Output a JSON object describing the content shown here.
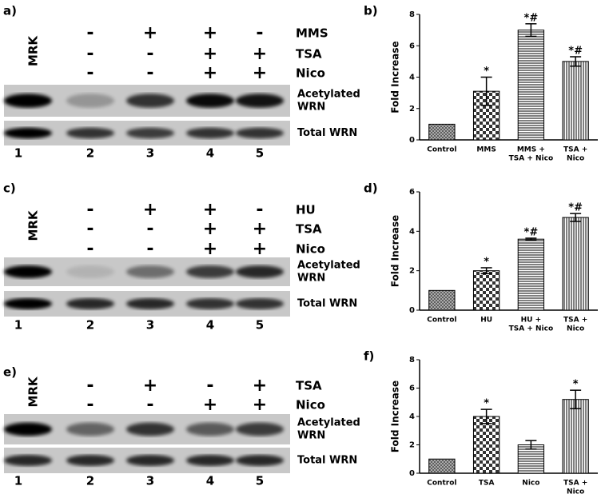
{
  "panels": [
    {
      "label": "a)",
      "marker": "MRK",
      "conditions": [
        {
          "name": "MMS",
          "signs": [
            "-",
            "+",
            "+",
            "-"
          ]
        },
        {
          "name": "TSA",
          "signs": [
            "-",
            "-",
            "+",
            "+"
          ]
        },
        {
          "name": "Nico",
          "signs": [
            "-",
            "-",
            "+",
            "+"
          ]
        }
      ],
      "blots": [
        [
          "Acetylated",
          "WRN"
        ],
        [
          "Total WRN"
        ]
      ],
      "lanes": [
        "1",
        "2",
        "3",
        "4",
        "5"
      ]
    },
    {
      "label": "c)",
      "marker": "MRK",
      "conditions": [
        {
          "name": "HU",
          "signs": [
            "-",
            "+",
            "+",
            "-"
          ]
        },
        {
          "name": "TSA",
          "signs": [
            "-",
            "-",
            "+",
            "+"
          ]
        },
        {
          "name": "Nico",
          "signs": [
            "-",
            "-",
            "+",
            "+"
          ]
        }
      ],
      "blots": [
        [
          "Acetylated",
          "WRN"
        ],
        [
          "Total WRN"
        ]
      ],
      "lanes": [
        "1",
        "2",
        "3",
        "4",
        "5"
      ]
    },
    {
      "label": "e)",
      "marker": "MRK",
      "conditions": [
        {
          "name": "TSA",
          "signs": [
            "-",
            "+",
            "-",
            "+"
          ]
        },
        {
          "name": "Nico",
          "signs": [
            "-",
            "-",
            "+",
            "+"
          ]
        }
      ],
      "blots": [
        [
          "Acetylated",
          "WRN"
        ],
        [
          "Total WRN"
        ]
      ],
      "lanes": [
        "1",
        "2",
        "3",
        "4",
        "5"
      ]
    }
  ],
  "chart_data": [
    {
      "type": "bar",
      "label": "b)",
      "y_label": "Fold Increase",
      "categories": [
        [
          "Control"
        ],
        [
          "MMS"
        ],
        [
          "MMS +",
          "TSA + Nico"
        ],
        [
          "TSA +",
          "Nico"
        ]
      ],
      "values": [
        1,
        3.1,
        7.0,
        5.0
      ],
      "errors": [
        null,
        0.9,
        0.4,
        0.3
      ],
      "annotations": [
        null,
        "*",
        "*#",
        "*#"
      ],
      "patterns": [
        "crosshatch",
        "checker",
        "hlines",
        "vlines"
      ],
      "ylim": [
        0,
        8
      ],
      "yticks": [
        0,
        2,
        4,
        6,
        8
      ]
    },
    {
      "type": "bar",
      "label": "d)",
      "y_label": "Fold Increase",
      "categories": [
        [
          "Control"
        ],
        [
          "HU"
        ],
        [
          "HU +",
          "TSA + Nico"
        ],
        [
          "TSA +",
          "Nico"
        ]
      ],
      "values": [
        1,
        2.0,
        3.6,
        4.7
      ],
      "errors": [
        null,
        0.15,
        0.05,
        0.2
      ],
      "annotations": [
        null,
        "*",
        "*#",
        "*#"
      ],
      "patterns": [
        "crosshatch",
        "checker",
        "hlines",
        "vlines"
      ],
      "ylim": [
        0,
        6
      ],
      "yticks": [
        0,
        2,
        4,
        6
      ]
    },
    {
      "type": "bar",
      "label": "f)",
      "y_label": "Fold Increase",
      "categories": [
        [
          "Control"
        ],
        [
          "TSA"
        ],
        [
          "Nico"
        ],
        [
          "TSA +",
          "Nico"
        ]
      ],
      "values": [
        1,
        4.0,
        2.0,
        5.2
      ],
      "errors": [
        null,
        0.5,
        0.3,
        0.65
      ],
      "annotations": [
        null,
        "*",
        null,
        "*"
      ],
      "patterns": [
        "crosshatch",
        "checker",
        "hlines",
        "vlines"
      ],
      "ylim": [
        0,
        8
      ],
      "yticks": [
        0,
        2,
        4,
        6,
        8
      ]
    }
  ]
}
